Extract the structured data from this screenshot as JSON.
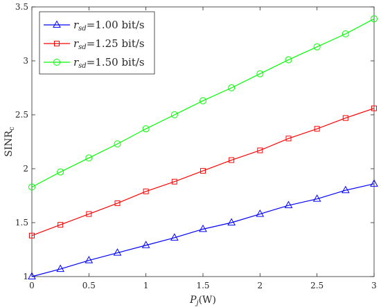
{
  "chart_data": {
    "type": "line",
    "xlabel": "P_j(W)",
    "xlabel_main": "P",
    "xlabel_sub": "j",
    "xlabel_unit": "(W)",
    "ylabel": "SINR_c",
    "ylabel_main": "SINR",
    "ylabel_sub": "c",
    "xlim": [
      0,
      3
    ],
    "ylim": [
      1,
      3.5
    ],
    "xticks": [
      "0",
      "0.5",
      "1",
      "1.5",
      "2",
      "2.5",
      "3"
    ],
    "yticks": [
      "1",
      "1.5",
      "2",
      "2.5",
      "3",
      "3.5"
    ],
    "grid": false,
    "legend_position": "top-left",
    "x": [
      0,
      0.25,
      0.5,
      0.75,
      1,
      1.25,
      1.5,
      1.75,
      2,
      2.25,
      2.5,
      2.75,
      3
    ],
    "series": [
      {
        "name": "r_sd=1.00 bit/s",
        "legend_var": "r",
        "legend_sub": "sd",
        "legend_rest": "=1.00 bit/s",
        "color": "#0000ff",
        "marker": "triangle",
        "values": [
          1.0,
          1.07,
          1.15,
          1.22,
          1.29,
          1.36,
          1.44,
          1.5,
          1.58,
          1.66,
          1.72,
          1.8,
          1.86
        ]
      },
      {
        "name": "r_sd=1.25 bit/s",
        "legend_var": "r",
        "legend_sub": "sd",
        "legend_rest": "=1.25 bit/s",
        "color": "#ff0000",
        "marker": "square",
        "values": [
          1.38,
          1.48,
          1.58,
          1.68,
          1.79,
          1.88,
          1.98,
          2.08,
          2.17,
          2.28,
          2.37,
          2.47,
          2.56
        ]
      },
      {
        "name": "r_sd=1.50 bit/s",
        "legend_var": "r",
        "legend_sub": "sd",
        "legend_rest": "=1.50 bit/s",
        "color": "#00ff00",
        "marker": "circle",
        "values": [
          1.83,
          1.97,
          2.1,
          2.23,
          2.37,
          2.5,
          2.63,
          2.75,
          2.88,
          3.01,
          3.13,
          3.25,
          3.39
        ]
      }
    ]
  }
}
